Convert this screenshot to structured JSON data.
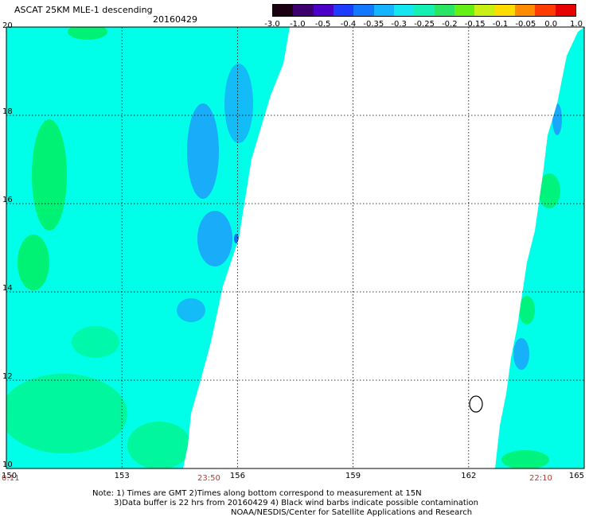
{
  "header": {
    "title": "ASCAT 25KM MLE-1 descending",
    "date": "20160429"
  },
  "colorbar": {
    "labels": [
      "-3.0",
      "-1.0",
      "-0.5",
      "-0.4",
      "-0.35",
      "-0.3",
      "-0.25",
      "-0.2",
      "-0.15",
      "-0.1",
      "-0.05",
      "0.0",
      "1.0"
    ],
    "colors": [
      "#1a0010",
      "#3c006e",
      "#4b00c8",
      "#1e3cff",
      "#1478ff",
      "#14b4ff",
      "#14e6f0",
      "#14f0b4",
      "#28e664",
      "#64f014",
      "#c8f014",
      "#ffdc00",
      "#ff8c00",
      "#ff3c00",
      "#e60000"
    ]
  },
  "map": {
    "lon_ticks": [
      "150",
      "153",
      "156",
      "159",
      "162",
      "165"
    ],
    "lat_ticks": [
      "20",
      "18",
      "16",
      "14",
      "12",
      "10"
    ],
    "swath_colors": {
      "cyan": "#00ffe8",
      "green": "#00f060",
      "blue": "#2090ff",
      "deep_blue": "#1060ff"
    }
  },
  "times": {
    "left": "0:11",
    "middle": "23:50",
    "right": "22:10"
  },
  "notes": {
    "line1": "Note: 1) Times are GMT 2)Times along bottom correspond to measurement at 15N",
    "line2": "3)Data buffer is 22 hrs from 20160429 4) Black wind barbs indicate possible contamination",
    "line3": "NOAA/NESDIS/Center for Satellite Applications and Research"
  }
}
